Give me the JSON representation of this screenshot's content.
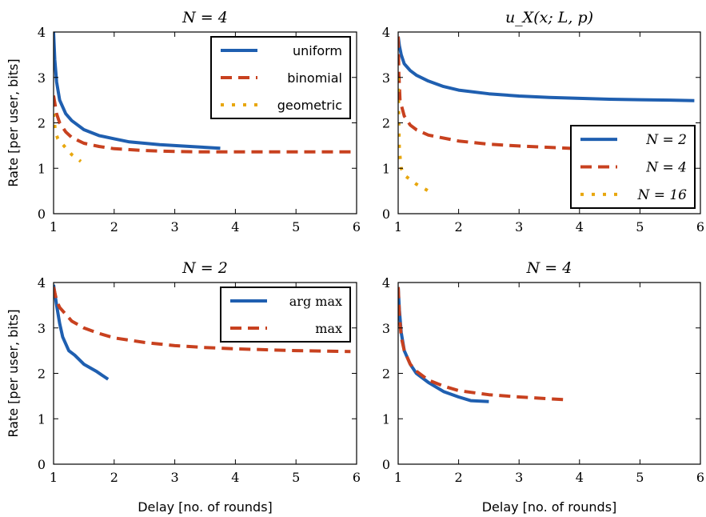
{
  "chart_data": [
    {
      "type": "line",
      "title": "N = 4",
      "ylabel": "Rate [per user, bits]",
      "xlabel": "",
      "xlim": [
        1,
        6
      ],
      "ylim": [
        0,
        4
      ],
      "xticks": [
        "1",
        "2",
        "3",
        "4",
        "5",
        "6"
      ],
      "yticks": [
        "0",
        "1",
        "2",
        "3",
        "4"
      ],
      "legend": "top-right",
      "legend_font": "sans",
      "series": [
        {
          "name": "uniform",
          "color": "#1f5fb0",
          "style": "solid",
          "x": [
            1.0,
            1.02,
            1.05,
            1.1,
            1.2,
            1.3,
            1.5,
            1.75,
            2.0,
            2.25,
            2.5,
            2.75,
            3.0,
            3.25,
            3.5,
            3.75
          ],
          "y": [
            4.0,
            3.4,
            2.9,
            2.5,
            2.2,
            2.05,
            1.85,
            1.72,
            1.65,
            1.58,
            1.55,
            1.52,
            1.5,
            1.48,
            1.46,
            1.44
          ]
        },
        {
          "name": "binomial",
          "color": "#c8411f",
          "style": "dashed",
          "x": [
            1.0,
            1.05,
            1.1,
            1.2,
            1.3,
            1.5,
            1.75,
            2.0,
            2.5,
            3.0,
            3.5,
            4.0,
            5.0,
            6.0
          ],
          "y": [
            2.6,
            2.2,
            2.0,
            1.8,
            1.68,
            1.55,
            1.48,
            1.43,
            1.39,
            1.37,
            1.36,
            1.36,
            1.36,
            1.36
          ]
        },
        {
          "name": "geometric",
          "color": "#e8a70e",
          "style": "dotted",
          "x": [
            1.0,
            1.03,
            1.07,
            1.1,
            1.2,
            1.3,
            1.45
          ],
          "y": [
            2.2,
            1.8,
            1.65,
            1.6,
            1.45,
            1.3,
            1.15
          ]
        }
      ]
    },
    {
      "type": "line",
      "title": "u_X(x; L, p)",
      "ylabel": "",
      "xlabel": "",
      "xlim": [
        1,
        6
      ],
      "ylim": [
        0,
        4
      ],
      "xticks": [
        "1",
        "2",
        "3",
        "4",
        "5",
        "6"
      ],
      "yticks": [
        "0",
        "1",
        "2",
        "3",
        "4"
      ],
      "legend": "bottom-right",
      "legend_font": "math",
      "series": [
        {
          "name": "N = 2",
          "color": "#1f5fb0",
          "style": "solid",
          "x": [
            1.0,
            1.02,
            1.05,
            1.1,
            1.2,
            1.3,
            1.5,
            1.75,
            2.0,
            2.5,
            3.0,
            3.5,
            4.0,
            4.5,
            5.0,
            5.5,
            5.9
          ],
          "y": [
            3.9,
            3.7,
            3.5,
            3.3,
            3.15,
            3.05,
            2.92,
            2.8,
            2.72,
            2.64,
            2.59,
            2.56,
            2.54,
            2.52,
            2.51,
            2.5,
            2.49
          ]
        },
        {
          "name": "N = 4",
          "color": "#c8411f",
          "style": "dashed",
          "x": [
            1.0,
            1.01,
            1.03,
            1.07,
            1.1,
            1.2,
            1.3,
            1.5,
            2.0,
            2.5,
            3.0,
            3.5,
            4.0
          ],
          "y": [
            3.9,
            3.1,
            2.5,
            2.3,
            2.15,
            1.95,
            1.85,
            1.73,
            1.6,
            1.53,
            1.49,
            1.46,
            1.43
          ]
        },
        {
          "name": "N = 16",
          "color": "#e8a70e",
          "style": "dotted",
          "x": [
            1.0,
            1.01,
            1.02,
            1.05,
            1.1,
            1.2,
            1.3,
            1.5
          ],
          "y": [
            3.0,
            2.0,
            1.4,
            1.0,
            0.85,
            0.75,
            0.65,
            0.5
          ]
        }
      ]
    },
    {
      "type": "line",
      "title": "N = 2",
      "ylabel": "Rate [per user, bits]",
      "xlabel": "Delay [no. of rounds]",
      "xlim": [
        1,
        6
      ],
      "ylim": [
        0,
        4
      ],
      "xticks": [
        "1",
        "2",
        "3",
        "4",
        "5",
        "6"
      ],
      "yticks": [
        "0",
        "1",
        "2",
        "3",
        "4"
      ],
      "legend": "top-right",
      "legend_font": "serif",
      "series": [
        {
          "name": "arg max",
          "color": "#1f5fb0",
          "style": "solid",
          "x": [
            1.0,
            1.05,
            1.1,
            1.15,
            1.25,
            1.35,
            1.5,
            1.7,
            1.9
          ],
          "y": [
            3.95,
            3.5,
            3.1,
            2.8,
            2.5,
            2.4,
            2.2,
            2.05,
            1.87
          ]
        },
        {
          "name": "max",
          "color": "#c8411f",
          "style": "dashed",
          "x": [
            1.0,
            1.05,
            1.1,
            1.2,
            1.3,
            1.5,
            1.75,
            2.0,
            2.5,
            3.0,
            3.5,
            4.0,
            4.5,
            5.0,
            5.5,
            5.9
          ],
          "y": [
            3.9,
            3.6,
            3.45,
            3.3,
            3.15,
            3.0,
            2.88,
            2.78,
            2.68,
            2.61,
            2.57,
            2.54,
            2.52,
            2.5,
            2.49,
            2.48
          ]
        }
      ]
    },
    {
      "type": "line",
      "title": "N = 4",
      "ylabel": "",
      "xlabel": "Delay [no. of rounds]",
      "xlim": [
        1,
        6
      ],
      "ylim": [
        0,
        4
      ],
      "xticks": [
        "1",
        "2",
        "3",
        "4",
        "5",
        "6"
      ],
      "yticks": [
        "0",
        "1",
        "2",
        "3",
        "4"
      ],
      "legend": "none",
      "series": [
        {
          "name": "",
          "color": "#1f5fb0",
          "style": "solid",
          "x": [
            1.0,
            1.02,
            1.05,
            1.1,
            1.2,
            1.3,
            1.5,
            1.75,
            2.0,
            2.2,
            2.5
          ],
          "y": [
            3.9,
            3.4,
            2.9,
            2.5,
            2.2,
            2.0,
            1.8,
            1.6,
            1.48,
            1.4,
            1.38
          ]
        },
        {
          "name": "",
          "color": "#c8411f",
          "style": "dashed",
          "x": [
            1.0,
            1.02,
            1.05,
            1.1,
            1.2,
            1.3,
            1.5,
            1.75,
            2.0,
            2.5,
            3.0,
            3.5,
            3.75
          ],
          "y": [
            3.9,
            3.3,
            2.8,
            2.5,
            2.2,
            2.05,
            1.85,
            1.72,
            1.62,
            1.53,
            1.48,
            1.44,
            1.42
          ]
        }
      ]
    }
  ]
}
